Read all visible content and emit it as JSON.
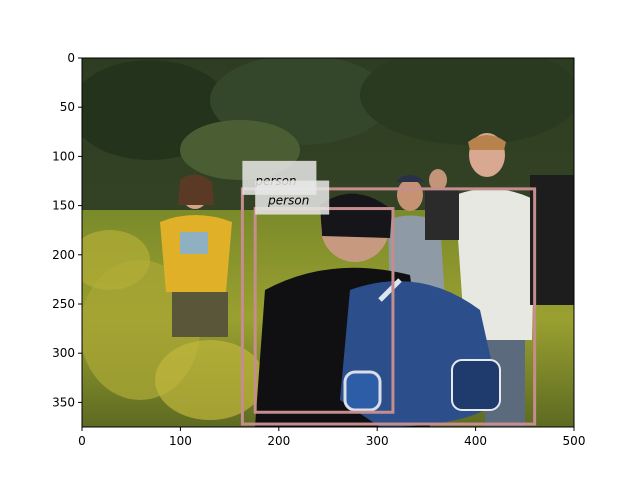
{
  "image": {
    "description_colors": {
      "sky_foliage": "#2f3e22",
      "meadow_yellow": "#b8b036",
      "box_outline": "#c48e8e",
      "label_bg": "#e8e8e8"
    }
  },
  "axes": {
    "xlim": [
      0,
      500
    ],
    "ylim": [
      375,
      0
    ],
    "x_ticks": [
      "0",
      "100",
      "200",
      "300",
      "400",
      "500"
    ],
    "y_ticks": [
      "0",
      "50",
      "100",
      "150",
      "200",
      "250",
      "300",
      "350"
    ]
  },
  "detections": [
    {
      "label": "person",
      "x1": 163,
      "y1": 133,
      "x2": 460,
      "y2": 372
    },
    {
      "label": "person",
      "x1": 176,
      "y1": 153,
      "x2": 316,
      "y2": 360
    }
  ]
}
